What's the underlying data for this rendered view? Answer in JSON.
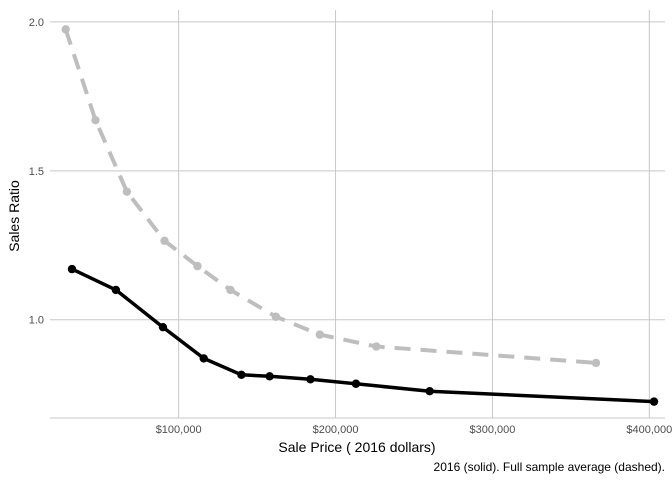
{
  "chart_data": {
    "type": "line",
    "xlabel": "Sale Price ( 2016 dollars)",
    "ylabel": "Sales Ratio",
    "caption": "2016 (solid). Full sample average (dashed).",
    "xlim": [
      18000,
      410000
    ],
    "ylim": [
      0.67,
      2.04
    ],
    "x_ticks": [
      {
        "value": 100000,
        "label": "$100,000"
      },
      {
        "value": 200000,
        "label": "$200,000"
      },
      {
        "value": 300000,
        "label": "$300,000"
      },
      {
        "value": 400000,
        "label": "$400,000"
      }
    ],
    "y_ticks": [
      {
        "value": 1.0,
        "label": "1.0"
      },
      {
        "value": 1.5,
        "label": "1.5"
      },
      {
        "value": 2.0,
        "label": "2.0"
      }
    ],
    "grid": true,
    "series": [
      {
        "style": "solid",
        "color": "#000000",
        "x": [
          32000,
          60000,
          90000,
          116000,
          140000,
          158000,
          184000,
          213000,
          260000,
          403000
        ],
        "y": [
          1.17,
          1.1,
          0.975,
          0.87,
          0.815,
          0.81,
          0.8,
          0.785,
          0.76,
          0.725
        ]
      },
      {
        "style": "dashed",
        "color": "#bebebe",
        "x": [
          28000,
          47000,
          67000,
          91000,
          112000,
          133000,
          162000,
          190000,
          226000,
          366000
        ],
        "y": [
          1.975,
          1.67,
          1.43,
          1.265,
          1.18,
          1.1,
          1.01,
          0.95,
          0.91,
          0.855
        ]
      }
    ]
  }
}
